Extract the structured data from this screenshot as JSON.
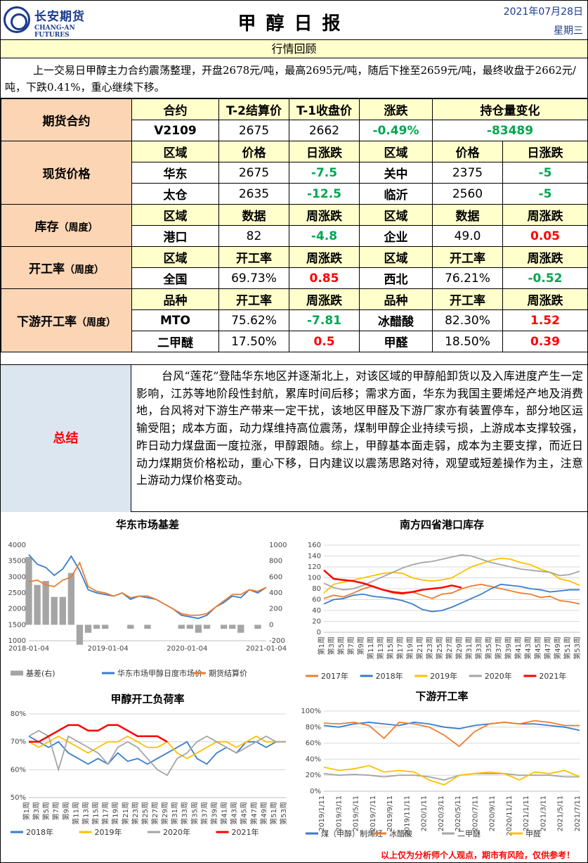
{
  "header": {
    "logo_cn": "长安期货",
    "logo_en": "CHANG-AN FUTURES",
    "title": "甲醇日报",
    "date": "2021年07月28日",
    "weekday": "星期三"
  },
  "review": {
    "title": "行情回顾",
    "text": "上一交易日甲醇主力合约震荡整理，开盘2678元/吨，最高2695元/吨，随后下挫至2659元/吨，最终收盘于2662元/吨，下跌0.41%，重心继续下移。"
  },
  "futures": {
    "label": "期货合约",
    "headers": [
      "合约",
      "T-2结算价",
      "T-1收盘价",
      "涨跌",
      "持仓量变化"
    ],
    "row": [
      "V2109",
      "2675",
      "2662",
      "-0.49%",
      "-83489"
    ]
  },
  "spot": {
    "label": "现货价格",
    "headers": [
      "区域",
      "价格",
      "日涨跌",
      "区域",
      "价格",
      "日涨跌"
    ],
    "rows": [
      [
        "华东",
        "2675",
        "-7.5",
        "关中",
        "2375",
        "-5"
      ],
      [
        "太仓",
        "2635",
        "-12.5",
        "临沂",
        "2560",
        "-5"
      ]
    ]
  },
  "inventory": {
    "label": "库存",
    "label_small": "（周度）",
    "headers": [
      "区域",
      "数据",
      "周涨跌",
      "区域",
      "数据",
      "周涨跌"
    ],
    "row": [
      "港口",
      "82",
      "-4.8",
      "企业",
      "49.0",
      "0.05"
    ]
  },
  "operating": {
    "label": "开工率",
    "label_small": "（周度）",
    "headers": [
      "区域",
      "开工率",
      "周涨跌",
      "区域",
      "开工率",
      "周涨跌"
    ],
    "row": [
      "全国",
      "69.73%",
      "0.85",
      "西北",
      "76.21%",
      "-0.52"
    ]
  },
  "downstream": {
    "label": "下游开工率",
    "label_small": "（周度）",
    "headers": [
      "品种",
      "开工率",
      "周涨跌",
      "品种",
      "开工率",
      "周涨跌"
    ],
    "rows": [
      [
        "MTO",
        "75.62%",
        "-7.81",
        "冰醋酸",
        "82.30%",
        "1.52"
      ],
      [
        "二甲醚",
        "17.50%",
        "0.5",
        "甲醛",
        "18.50%",
        "0.39"
      ]
    ]
  },
  "summary": {
    "label": "总结",
    "text": "台风“莲花”登陆华东地区并逐渐北上，对该区域的甲醇船卸货以及入库进度产生一定影响，江苏等地阶段性封航，累库时间后移；需求方面，华东为我国主要烯烃产地及消费地，台风将对下游生产带来一定干扰，该地区甲醛及下游厂家亦有装置停车，部分地区运输受阻；成本方面，动力煤维持高位震荡，煤制甲醇企业持续亏损，上游成本支撑较强，昨日动力煤盘面一度拉涨，甲醇跟随。综上，甲醇基本面走弱，成本为主要支撑，而近日动力煤期货价格松动，重心下移，日内建议以震荡思路对待，观望或短差操作为主，注意上游动力煤价格变动。"
  },
  "colors": {
    "green": "#00a650",
    "red": "#ff0000",
    "blue": "#3a7dc9",
    "orange": "#ed7d31",
    "gray": "#a5a5a5",
    "yellow": "#ffc000"
  },
  "chart_data": [
    {
      "type": "line",
      "title": "华东市场基差",
      "x_ticks": [
        "2018-01-04",
        "2019-01-04",
        "2020-01-04",
        "2021-01-04"
      ],
      "y_left_ticks": [
        "4000",
        "3500",
        "3000",
        "2500",
        "2000",
        "1500",
        "1000"
      ],
      "y_right_ticks": [
        "1000",
        "800",
        "600",
        "400",
        "200",
        "0",
        "-200"
      ],
      "ylim_left": [
        1000,
        4000
      ],
      "ylim_right": [
        -200,
        1000
      ],
      "legend": [
        "基差(右)",
        "华东市场甲醇日度市场价",
        "期货结算价"
      ],
      "series": [
        {
          "name": "华东市场甲醇日度市场价",
          "values": [
            3700,
            3400,
            3300,
            3050,
            3250,
            3650,
            3200,
            2600,
            2500,
            2450,
            2400,
            2500,
            2300,
            2400,
            2350,
            2300,
            2150,
            2000,
            1800,
            1750,
            1700,
            1800,
            2050,
            2200,
            2400,
            2350,
            2600,
            2500,
            2675
          ]
        },
        {
          "name": "期货结算价",
          "values": [
            2850,
            2900,
            2750,
            2700,
            2900,
            3000,
            3450,
            2700,
            2550,
            2500,
            2400,
            2500,
            2350,
            2400,
            2400,
            2300,
            2150,
            2000,
            1850,
            1800,
            1800,
            1850,
            2050,
            2250,
            2450,
            2450,
            2600,
            2550,
            2675
          ]
        },
        {
          "name": "基差(右)",
          "values": [
            850,
            500,
            550,
            350,
            350,
            650,
            -250,
            -100,
            -50,
            -50,
            0,
            0,
            -50,
            0,
            -50,
            0,
            0,
            0,
            -50,
            -50,
            -100,
            -50,
            0,
            -50,
            -50,
            -100,
            0,
            -50,
            0
          ]
        }
      ]
    },
    {
      "type": "line",
      "title": "南方四省港口库存",
      "y_ticks": [
        "160",
        "140",
        "120",
        "100",
        "80",
        "60",
        "40",
        "20",
        "0"
      ],
      "ylim": [
        0,
        160
      ],
      "x_ticks": [
        "第1周",
        "第3周",
        "第5周",
        "第7周",
        "第9周",
        "第11周",
        "第13周",
        "第15周",
        "第17周",
        "第19周",
        "第21周",
        "第23周",
        "第25周",
        "第27周",
        "第29周",
        "第31周",
        "第33周",
        "第35周",
        "第37周",
        "第39周",
        "第41周",
        "第43周",
        "第45周",
        "第47周",
        "第49周",
        "第51周",
        "第53周"
      ],
      "legend": [
        "2017年",
        "2018年",
        "2019年",
        "2020年",
        "2021年"
      ],
      "series": [
        {
          "name": "2017年",
          "values": [
            62,
            68,
            65,
            72,
            80,
            85,
            78,
            72,
            70,
            74,
            68,
            62,
            70,
            72,
            80,
            85,
            88,
            84,
            80,
            76,
            72,
            70,
            64,
            66,
            58,
            56,
            52
          ]
        },
        {
          "name": "2018年",
          "values": [
            52,
            60,
            62,
            68,
            70,
            66,
            64,
            62,
            58,
            52,
            42,
            38,
            40,
            46,
            54,
            62,
            70,
            80,
            88,
            86,
            84,
            80,
            78,
            74,
            76,
            78,
            78
          ]
        },
        {
          "name": "2019年",
          "values": [
            72,
            88,
            92,
            96,
            100,
            104,
            108,
            110,
            108,
            100,
            96,
            94,
            96,
            100,
            110,
            120,
            126,
            132,
            136,
            134,
            128,
            124,
            116,
            110,
            98,
            94,
            86
          ]
        },
        {
          "name": "2020年",
          "values": [
            90,
            82,
            78,
            80,
            86,
            94,
            102,
            110,
            118,
            124,
            128,
            130,
            134,
            138,
            142,
            140,
            134,
            128,
            124,
            120,
            116,
            114,
            112,
            110,
            104,
            106,
            112
          ]
        },
        {
          "name": "2021年",
          "values": [
            114,
            98,
            96,
            94,
            90,
            84,
            78,
            74,
            72,
            74,
            78,
            80,
            82,
            86,
            82
          ]
        }
      ]
    },
    {
      "type": "line",
      "title": "甲醇开工负荷率",
      "y_ticks": [
        "80%",
        "70%",
        "60%",
        "50%"
      ],
      "ylim": [
        50,
        80
      ],
      "x_ticks": [
        "第1周",
        "第3周",
        "第5周",
        "第7周",
        "第9周",
        "第11周",
        "第13周",
        "第15周",
        "第17周",
        "第19周",
        "第21周",
        "第23周",
        "第25周",
        "第27周",
        "第29周",
        "第31周",
        "第33周",
        "第35周",
        "第37周",
        "第39周",
        "第41周",
        "第43周",
        "第45周",
        "第47周",
        "第49周",
        "第51周",
        "第53周"
      ],
      "legend": [
        "2018年",
        "2019年",
        "2020年",
        "2021年"
      ],
      "series": [
        {
          "name": "2018年",
          "values": [
            72,
            70,
            68,
            70,
            66,
            64,
            62,
            64,
            62,
            66,
            63,
            64,
            62,
            64,
            66,
            68,
            70,
            64,
            62,
            66,
            68,
            66,
            70,
            70,
            68,
            70,
            70
          ]
        },
        {
          "name": "2019年",
          "values": [
            70,
            68,
            70,
            72,
            70,
            68,
            66,
            68,
            70,
            70,
            72,
            70,
            68,
            68,
            70,
            66,
            64,
            66,
            68,
            70,
            70,
            68,
            70,
            72,
            70,
            70,
            70
          ]
        },
        {
          "name": "2020年",
          "values": [
            72,
            74,
            72,
            60,
            72,
            70,
            68,
            66,
            62,
            68,
            70,
            68,
            64,
            60,
            58,
            64,
            66,
            70,
            72,
            70,
            68,
            66,
            68,
            70,
            72,
            70,
            70
          ]
        },
        {
          "name": "2021年",
          "values": [
            70,
            70,
            72,
            74,
            76,
            76,
            74,
            74,
            76,
            76,
            74,
            72,
            72,
            72,
            70
          ]
        }
      ]
    },
    {
      "type": "line",
      "title": "下游开工率",
      "y_ticks": [
        "100%",
        "80%",
        "60%",
        "40%",
        "20%",
        "0%"
      ],
      "ylim": [
        0,
        100
      ],
      "x_ticks": [
        "2019/1/11",
        "2019/3/11",
        "2019/5/11",
        "2019/7/11",
        "2019/9/11",
        "2019/11/11",
        "2020/1/11",
        "2020/3/11",
        "2020/5/11",
        "2020/7/11",
        "2020/9/11",
        "2020/11/11",
        "2021/1/11",
        "2021/3/11",
        "2021/5/11",
        "2021/7/11"
      ],
      "legend": [
        "煤（甲醇）制烯烃",
        "冰醋酸",
        "二甲醚",
        "甲醛"
      ],
      "series": [
        {
          "name": "煤（甲醇）制烯烃",
          "values": [
            82,
            80,
            84,
            86,
            84,
            82,
            86,
            84,
            80,
            78,
            82,
            84,
            86,
            84,
            84,
            82,
            80,
            76
          ]
        },
        {
          "name": "冰醋酸",
          "values": [
            85,
            84,
            86,
            82,
            66,
            86,
            84,
            80,
            70,
            56,
            74,
            84,
            86,
            84,
            88,
            86,
            82,
            82
          ]
        },
        {
          "name": "二甲醚",
          "values": [
            22,
            20,
            21,
            20,
            18,
            20,
            20,
            18,
            14,
            20,
            22,
            22,
            22,
            20,
            20,
            20,
            18,
            18
          ]
        },
        {
          "name": "甲醛",
          "values": [
            30,
            26,
            28,
            32,
            24,
            26,
            24,
            14,
            8,
            20,
            22,
            24,
            22,
            14,
            24,
            22,
            26,
            18
          ]
        }
      ]
    }
  ],
  "disclaimer": "以上仅为分析师个人观点，期市有风险，仅供参考！"
}
